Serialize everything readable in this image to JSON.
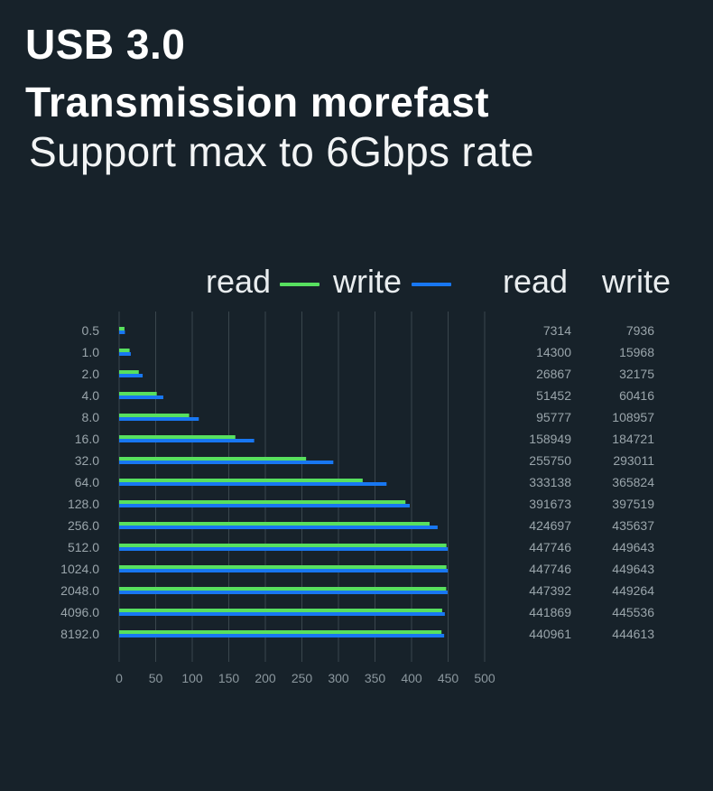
{
  "header": {
    "title_line1": "USB 3.0",
    "title_line2": "Transmission morefast",
    "subtitle": "Support max to 6Gbps rate"
  },
  "legend": {
    "read_label": "read",
    "write_label": "write"
  },
  "table_headers": {
    "read": "read",
    "write": "write"
  },
  "colors": {
    "read": "#57e05f",
    "write": "#1877f2",
    "background": "#17222a",
    "grid": "#3a464d"
  },
  "chart_data": {
    "type": "bar",
    "orientation": "horizontal",
    "categories": [
      "0.5",
      "1.0",
      "2.0",
      "4.0",
      "8.0",
      "16.0",
      "32.0",
      "64.0",
      "128.0",
      "256.0",
      "512.0",
      "1024.0",
      "2048.0",
      "4096.0",
      "8192.0"
    ],
    "series": [
      {
        "name": "read",
        "values": [
          7314,
          14300,
          26867,
          51452,
          95777,
          158949,
          255750,
          333138,
          391673,
          424697,
          447746,
          447746,
          447392,
          441869,
          440961
        ]
      },
      {
        "name": "write",
        "values": [
          7936,
          15968,
          32175,
          60416,
          108957,
          184721,
          293011,
          365824,
          397519,
          435637,
          449643,
          449643,
          449264,
          445536,
          444613
        ]
      }
    ],
    "xticks": [
      0,
      50,
      100,
      150,
      200,
      250,
      300,
      350,
      400,
      450,
      500
    ],
    "xlim": [
      0,
      500
    ],
    "value_scale_note_units": "bar length in thousands of table value",
    "grid": true,
    "legend_position": "top"
  }
}
